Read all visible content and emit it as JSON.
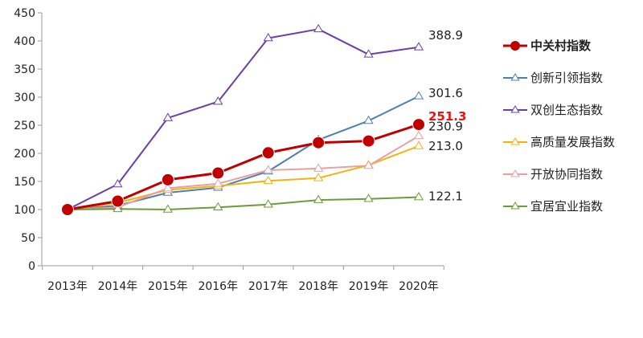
{
  "chart_data": {
    "type": "line",
    "title": "",
    "xlabel": "",
    "ylabel": "",
    "categories": [
      "2013年",
      "2014年",
      "2015年",
      "2016年",
      "2017年",
      "2018年",
      "2019年",
      "2020年"
    ],
    "ylim": [
      0,
      450
    ],
    "yticks": [
      "0",
      "50",
      "100",
      "150",
      "200",
      "250",
      "300",
      "350",
      "400",
      "450"
    ],
    "grid": false,
    "legend_position": "right",
    "series": [
      {
        "name": "中关村指数",
        "color": "#c00000",
        "marker": "circle",
        "bold": true,
        "values": [
          100,
          115,
          153,
          165,
          201,
          219,
          222,
          251.3
        ],
        "end_label": "251.3"
      },
      {
        "name": "创新引领指数",
        "color": "#4a7fb5",
        "marker": "triangle",
        "bold": false,
        "values": [
          100,
          107,
          130,
          139,
          168,
          224,
          258,
          301.6
        ],
        "end_label": "301.6"
      },
      {
        "name": "双创生态指数",
        "color": "#6b3fa8",
        "marker": "triangle",
        "bold": false,
        "values": [
          100,
          145,
          263,
          292,
          405,
          421,
          376,
          388.9
        ],
        "end_label": "388.9"
      },
      {
        "name": "高质量发展指数",
        "color": "#f2b311",
        "marker": "triangle",
        "bold": false,
        "values": [
          100,
          112,
          135,
          142,
          151,
          156,
          179,
          213.0
        ],
        "end_label": "213.0"
      },
      {
        "name": "开放协同指数",
        "color": "#e8a0a0",
        "marker": "triangle",
        "bold": false,
        "values": [
          100,
          104,
          138,
          146,
          170,
          173,
          178,
          230.9
        ],
        "end_label": "230.9"
      },
      {
        "name": "宜居宜业指数",
        "color": "#6f9a3a",
        "marker": "triangle",
        "bold": false,
        "values": [
          100,
          101,
          100,
          104,
          109,
          117,
          119,
          122.1
        ],
        "end_label": "122.1"
      }
    ]
  }
}
